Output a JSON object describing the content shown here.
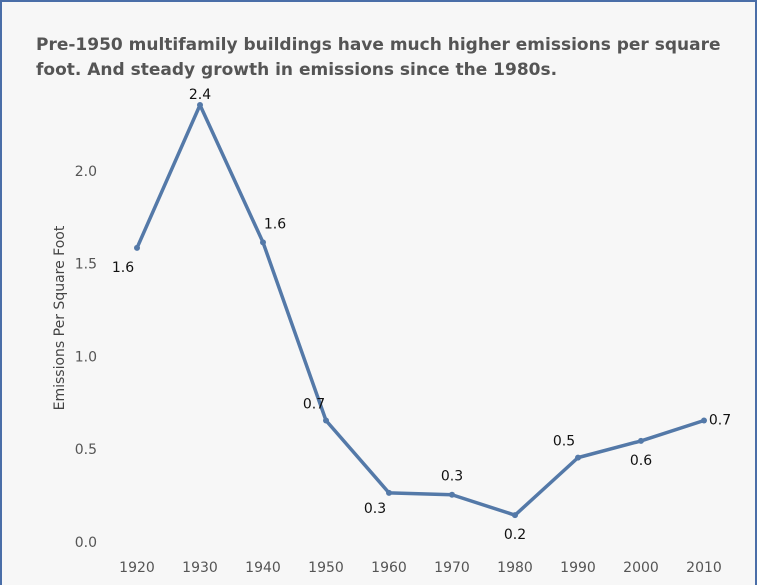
{
  "chart_data": {
    "type": "line",
    "title": "Pre-1950 multifamily buildings have much higher emissions per square foot. And steady growth in emissions since the 1980s.",
    "title_lines": [
      "Pre-1950 multifamily buildings have much higher emissions per square",
      "foot. And steady growth in emissions since the 1980s."
    ],
    "y_label": "Emissions Per Square Foot",
    "categories": [
      "1920",
      "1930",
      "1940",
      "1950",
      "1960",
      "1970",
      "1980",
      "1990",
      "2000",
      "2010"
    ],
    "series": [
      {
        "name": "Emissions Per Square Foot",
        "color": "#5479a8",
        "values": [
          1.59,
          2.36,
          1.62,
          0.66,
          0.27,
          0.26,
          0.15,
          0.46,
          0.55,
          0.66
        ],
        "value_labels": [
          "1.6",
          "2.4",
          "1.6",
          "0.7",
          "0.3",
          "0.3",
          "0.2",
          "0.5",
          "0.6",
          "0.7"
        ]
      }
    ],
    "ylim": [
      0,
      2.5
    ],
    "yticks": [
      {
        "value": 0,
        "label": "0.0"
      },
      0.5,
      {
        "value": 1,
        "label": "1.0"
      },
      1.5,
      {
        "value": 2,
        "label": "2.0"
      }
    ]
  }
}
